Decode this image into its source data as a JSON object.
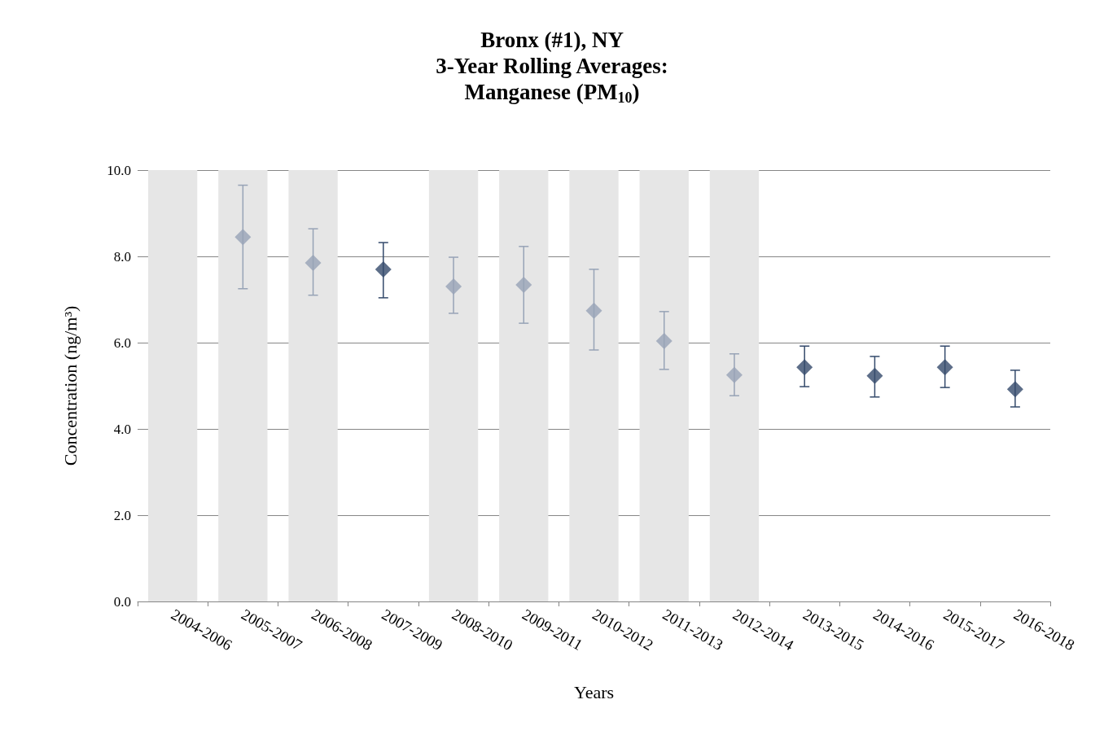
{
  "chart_data": {
    "type": "scatter",
    "title": "Bronx (#1), NY\n3-Year Rolling Averages:\nManganese (PM$_{10}$)",
    "xlabel": "Years",
    "ylabel": "Concentration (ng/m³)",
    "categories": [
      "2004-2006",
      "2005-2007",
      "2006-2008",
      "2007-2009",
      "2008-2010",
      "2009-2011",
      "2010-2012",
      "2011-2013",
      "2012-2014",
      "2013-2015",
      "2014-2016",
      "2015-2017",
      "2016-2018"
    ],
    "series": [
      {
        "color": "#97a3b6",
        "values": [
          null,
          8.45,
          7.85,
          null,
          7.3,
          7.34,
          6.74,
          6.04,
          5.25,
          null,
          null,
          null,
          null
        ],
        "errors": [
          null,
          [
            7.25,
            9.65
          ],
          [
            7.1,
            8.64
          ],
          null,
          [
            6.68,
            7.98
          ],
          [
            6.45,
            8.23
          ],
          [
            5.83,
            7.7
          ],
          [
            5.38,
            6.72
          ],
          [
            4.77,
            5.74
          ],
          null,
          null,
          null,
          null
        ]
      },
      {
        "color": "#344a6b",
        "values": [
          null,
          null,
          null,
          7.7,
          null,
          null,
          null,
          null,
          null,
          5.43,
          5.23,
          5.43,
          4.92
        ],
        "errors": [
          null,
          null,
          null,
          [
            7.04,
            8.32
          ],
          null,
          null,
          null,
          null,
          null,
          [
            4.98,
            5.92
          ],
          [
            4.74,
            5.68
          ],
          [
            4.96,
            5.92
          ],
          [
            4.51,
            5.36
          ]
        ]
      }
    ],
    "bands": [
      {
        "axis": "x",
        "from": "2004-2006",
        "to": "2004-2006",
        "color": "#e6e6e6"
      },
      {
        "axis": "x",
        "from": "2005-2007",
        "to": "2005-2007",
        "color": "#e6e6e6"
      },
      {
        "axis": "x",
        "from": "2006-2008",
        "to": "2006-2008",
        "color": "#e6e6e6"
      },
      {
        "axis": "x",
        "from": "2008-2010",
        "to": "2008-2010",
        "color": "#e6e6e6"
      },
      {
        "axis": "x",
        "from": "2009-2011",
        "to": "2009-2011",
        "color": "#e6e6e6"
      },
      {
        "axis": "x",
        "from": "2010-2012",
        "to": "2010-2012",
        "color": "#e6e6e6"
      },
      {
        "axis": "x",
        "from": "2011-2013",
        "to": "2011-2013",
        "color": "#e6e6e6"
      },
      {
        "axis": "x",
        "from": "2012-2014",
        "to": "2012-2014",
        "color": "#e6e6e6"
      }
    ],
    "ylim": [
      0,
      10
    ],
    "yticks": [
      {
        "value": 0,
        "label": "0.0"
      },
      {
        "value": 2,
        "label": "2.0"
      },
      {
        "value": 4,
        "label": "4.0"
      },
      {
        "value": 6,
        "label": "6.0"
      },
      {
        "value": 8,
        "label": "8.0"
      },
      {
        "value": 10,
        "label": "10.0"
      }
    ],
    "grid": "y",
    "marker": "diamond"
  }
}
